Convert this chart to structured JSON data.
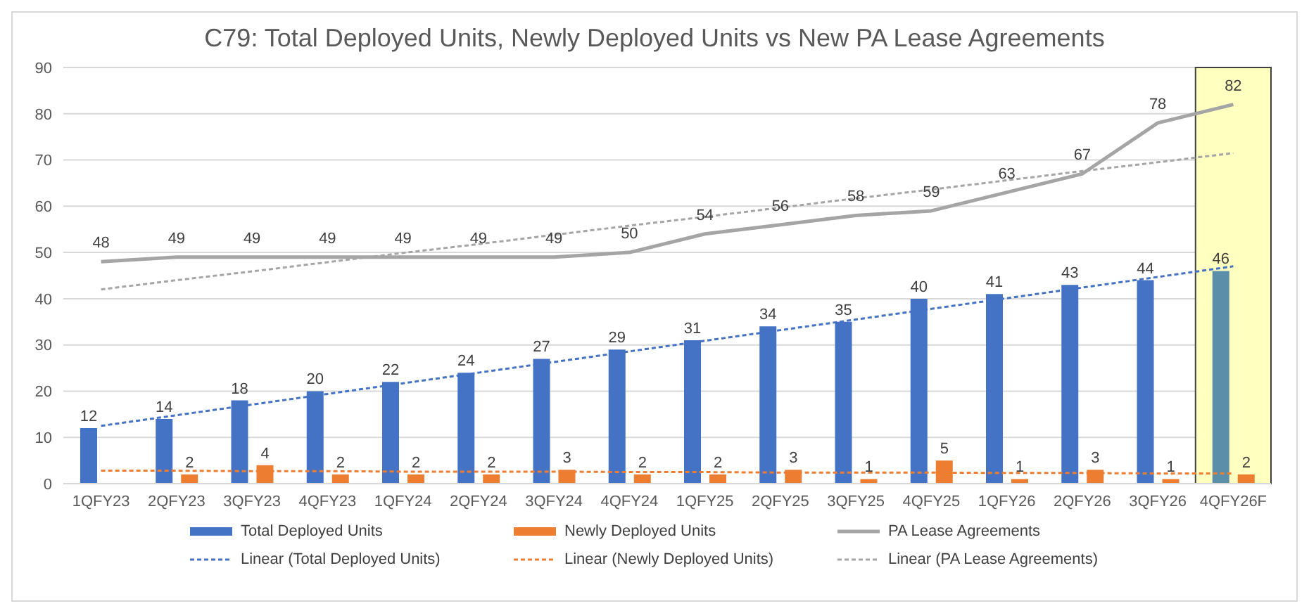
{
  "chart_data": {
    "type": "bar",
    "title": "C79: Total Deployed Units, Newly Deployed Units vs New PA Lease Agreements",
    "categories": [
      "1QFY23",
      "2QFY23",
      "3QFY23",
      "4QFY23",
      "1QFY24",
      "2QFY24",
      "3QFY24",
      "4QFY24",
      "1QFY25",
      "2QFY25",
      "3QFY25",
      "4QFY25",
      "1QFY26",
      "2QFY26",
      "3QFY26",
      "4QFY26F"
    ],
    "series": [
      {
        "name": "Total Deployed Units",
        "color": "#4472c4",
        "colors": [
          "#4472c4",
          "#4472c4",
          "#4472c4",
          "#4472c4",
          "#4472c4",
          "#4472c4",
          "#4472c4",
          "#4472c4",
          "#4472c4",
          "#4472c4",
          "#4472c4",
          "#4472c4",
          "#4472c4",
          "#4472c4",
          "#4472c4",
          "#5b8fa9"
        ],
        "values": [
          12,
          14,
          18,
          20,
          22,
          24,
          27,
          29,
          31,
          34,
          35,
          40,
          41,
          43,
          44,
          46
        ],
        "value_labels": [
          "12",
          "14",
          "18",
          "20",
          "22",
          "24",
          "27",
          "29",
          "31",
          "34",
          "35",
          "40",
          "41",
          "43",
          "44",
          "46"
        ]
      },
      {
        "name": "Newly Deployed Units",
        "color": "#ed7d31",
        "values": [
          null,
          2,
          4,
          2,
          2,
          2,
          3,
          2,
          2,
          3,
          1,
          5,
          1,
          3,
          1,
          2
        ],
        "value_labels": [
          null,
          "2",
          "4",
          "2",
          "2",
          "2",
          "3",
          "2",
          "2",
          "3",
          "1",
          "5",
          "1",
          "3",
          "1",
          "2"
        ]
      },
      {
        "name": "PA Lease Agreements",
        "type": "line",
        "color": "#a5a5a5",
        "line_style": "solid",
        "values": [
          48,
          49,
          49,
          49,
          49,
          49,
          49,
          50,
          54,
          56,
          58,
          59,
          63,
          67,
          78,
          82
        ],
        "value_labels": [
          "48",
          "49",
          "49",
          "49",
          "49",
          "49",
          "49",
          "50",
          "54",
          "56",
          "58",
          "59",
          "63",
          "67",
          "78",
          "82"
        ]
      },
      {
        "name": "Linear (Total Deployed Units)",
        "type": "line",
        "color": "#4472c4",
        "line_style": "dotted",
        "values": [
          12.5,
          14.8,
          17.1,
          19.4,
          21.7,
          24,
          26.3,
          28.6,
          30.9,
          33.2,
          35.5,
          37.8,
          40.1,
          42.4,
          44.7,
          47
        ]
      },
      {
        "name": "Linear (Newly Deployed Units)",
        "type": "line",
        "color": "#ed7d31",
        "line_style": "dotted",
        "values": [
          2.8,
          2.8,
          2.7,
          2.7,
          2.6,
          2.6,
          2.6,
          2.5,
          2.5,
          2.4,
          2.4,
          2.4,
          2.3,
          2.3,
          2.2,
          2.2
        ]
      },
      {
        "name": "Linear (PA Lease Agreements)",
        "type": "line",
        "color": "#a5a5a5",
        "line_style": "dotted",
        "values": [
          42,
          44,
          45.9,
          47.9,
          49.9,
          51.8,
          53.8,
          55.8,
          57.7,
          59.7,
          61.7,
          63.6,
          65.6,
          67.6,
          69.5,
          71.5
        ]
      }
    ],
    "bands": [
      {
        "axis": "x",
        "from": "4QFY26F",
        "to": "4QFY26F",
        "color": "#ffffc0"
      }
    ],
    "ylim": [
      0,
      90
    ],
    "yticks": [
      0,
      10,
      20,
      30,
      40,
      50,
      60,
      70,
      80,
      90
    ],
    "grid": "y",
    "legend": "bottom",
    "marker": "none"
  }
}
